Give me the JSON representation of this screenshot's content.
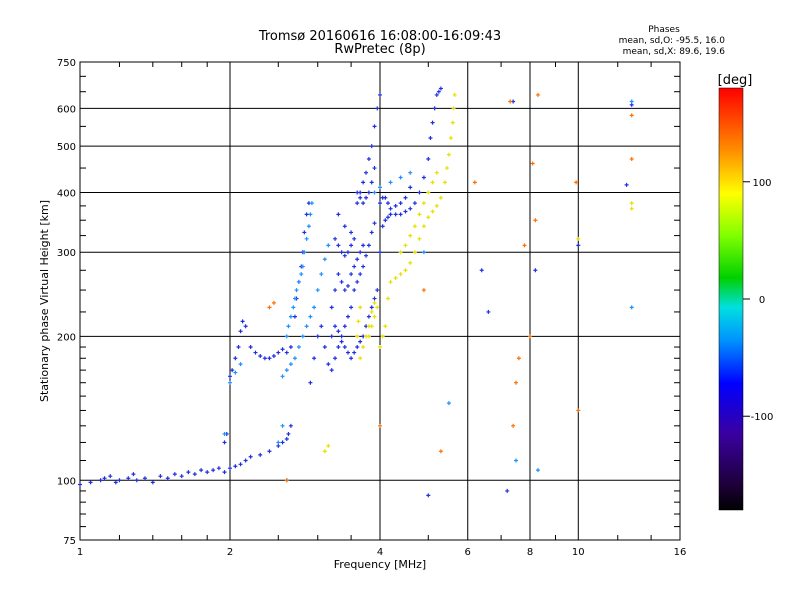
{
  "chart_data": {
    "type": "scatter",
    "title": "Tromsø 20160616 16:08:00-16:09:43",
    "subtitle": "RwPretec (8p)",
    "stats": {
      "heading": "Phases",
      "line_o": "mean, sd,O: -95.5, 16.0",
      "line_x": "mean, sd,X:  89.6, 19.6"
    },
    "xlabel": "Frequency [MHz]",
    "ylabel": "Stationary phase Virtual Height [km]",
    "xscale": "log",
    "yscale": "log",
    "xlim": [
      1,
      16
    ],
    "ylim": [
      75,
      750
    ],
    "xticks": [
      1,
      2,
      4,
      6,
      8,
      10,
      16
    ],
    "xtick_labels": [
      "1",
      "2",
      "4",
      "6",
      "8",
      "10",
      "16"
    ],
    "yticks": [
      75,
      100,
      200,
      300,
      400,
      500,
      600,
      750
    ],
    "ytick_labels": [
      "75",
      "100",
      "200",
      "300",
      "400",
      "500",
      "600",
      "750"
    ],
    "grid": true,
    "colorbar": {
      "label": "[deg]",
      "range": [
        -180,
        180
      ],
      "ticks": [
        100,
        0,
        -100
      ],
      "tick_labels": [
        "100",
        "0",
        "-100"
      ]
    },
    "series": [
      {
        "mode": "O",
        "phase_deg": -120,
        "color": "#2030e0",
        "points": [
          [
            1.0,
            98
          ],
          [
            1.05,
            99
          ],
          [
            1.1,
            100
          ],
          [
            1.12,
            101
          ],
          [
            1.15,
            102
          ],
          [
            1.18,
            99
          ],
          [
            1.2,
            100
          ],
          [
            1.25,
            101
          ],
          [
            1.28,
            103
          ],
          [
            1.3,
            100
          ],
          [
            1.35,
            101
          ],
          [
            1.4,
            99
          ],
          [
            1.45,
            102
          ],
          [
            1.5,
            101
          ],
          [
            1.55,
            103
          ],
          [
            1.6,
            102
          ],
          [
            1.65,
            104
          ],
          [
            1.7,
            103
          ],
          [
            1.75,
            105
          ],
          [
            1.8,
            104
          ],
          [
            1.85,
            105
          ],
          [
            1.9,
            106
          ],
          [
            1.95,
            104
          ],
          [
            2.0,
            106
          ],
          [
            2.05,
            107
          ],
          [
            2.1,
            108
          ],
          [
            2.15,
            110
          ],
          [
            2.2,
            112
          ],
          [
            2.3,
            113
          ],
          [
            2.4,
            115
          ],
          [
            2.5,
            118
          ],
          [
            2.55,
            120
          ],
          [
            2.6,
            122
          ],
          [
            2.62,
            125
          ],
          [
            2.65,
            130
          ],
          [
            1.95,
            120
          ],
          [
            1.97,
            125
          ],
          [
            2.0,
            165
          ],
          [
            2.02,
            170
          ],
          [
            2.05,
            180
          ],
          [
            2.08,
            190
          ],
          [
            2.1,
            205
          ],
          [
            2.12,
            215
          ],
          [
            2.15,
            210
          ],
          [
            2.2,
            190
          ],
          [
            2.25,
            185
          ],
          [
            2.3,
            182
          ],
          [
            2.35,
            180
          ],
          [
            2.4,
            180
          ],
          [
            2.45,
            182
          ],
          [
            2.5,
            185
          ],
          [
            2.55,
            188
          ],
          [
            2.6,
            185
          ],
          [
            2.65,
            190
          ],
          [
            2.9,
            160
          ],
          [
            2.95,
            180
          ],
          [
            3.0,
            200
          ],
          [
            3.05,
            210
          ],
          [
            3.1,
            190
          ],
          [
            3.15,
            175
          ],
          [
            3.2,
            170
          ],
          [
            3.25,
            180
          ],
          [
            3.3,
            190
          ],
          [
            3.35,
            200
          ],
          [
            3.4,
            210
          ],
          [
            3.45,
            220
          ],
          [
            3.5,
            230
          ],
          [
            3.55,
            250
          ],
          [
            3.6,
            260
          ],
          [
            3.65,
            270
          ],
          [
            3.7,
            280
          ],
          [
            3.75,
            295
          ],
          [
            3.8,
            310
          ],
          [
            3.85,
            330
          ],
          [
            3.9,
            345
          ],
          [
            3.2,
            230
          ],
          [
            3.25,
            250
          ],
          [
            3.3,
            270
          ],
          [
            3.35,
            260
          ],
          [
            3.4,
            250
          ],
          [
            3.45,
            255
          ],
          [
            3.5,
            270
          ],
          [
            3.55,
            280
          ],
          [
            3.6,
            290
          ],
          [
            3.65,
            300
          ],
          [
            3.7,
            310
          ],
          [
            3.25,
            320
          ],
          [
            3.3,
            310
          ],
          [
            3.35,
            300
          ],
          [
            3.4,
            295
          ],
          [
            3.45,
            300
          ],
          [
            3.5,
            310
          ],
          [
            3.55,
            320
          ],
          [
            3.2,
            200
          ],
          [
            3.25,
            210
          ],
          [
            3.3,
            205
          ],
          [
            3.35,
            195
          ],
          [
            3.4,
            190
          ],
          [
            3.45,
            185
          ],
          [
            3.5,
            180
          ],
          [
            3.55,
            185
          ],
          [
            3.6,
            190
          ],
          [
            3.65,
            195
          ],
          [
            3.7,
            200
          ],
          [
            3.75,
            210
          ],
          [
            3.8,
            220
          ],
          [
            3.85,
            230
          ],
          [
            3.9,
            240
          ],
          [
            3.95,
            250
          ],
          [
            4.0,
            300
          ],
          [
            4.05,
            340
          ],
          [
            4.1,
            350
          ],
          [
            4.15,
            355
          ],
          [
            4.2,
            360
          ],
          [
            4.3,
            360
          ],
          [
            4.4,
            360
          ],
          [
            4.5,
            365
          ],
          [
            4.6,
            370
          ],
          [
            4.7,
            380
          ],
          [
            4.8,
            400
          ],
          [
            4.9,
            430
          ],
          [
            5.0,
            470
          ],
          [
            5.05,
            520
          ],
          [
            5.1,
            560
          ],
          [
            5.15,
            600
          ],
          [
            5.2,
            640
          ],
          [
            5.25,
            650
          ],
          [
            5.3,
            660
          ],
          [
            4.0,
            380
          ],
          [
            4.05,
            390
          ],
          [
            4.1,
            390
          ],
          [
            4.15,
            380
          ],
          [
            4.2,
            370
          ],
          [
            4.3,
            375
          ],
          [
            4.4,
            380
          ],
          [
            4.5,
            390
          ],
          [
            4.6,
            410
          ],
          [
            3.6,
            380
          ],
          [
            3.65,
            400
          ],
          [
            3.7,
            420
          ],
          [
            3.75,
            440
          ],
          [
            3.8,
            470
          ],
          [
            3.85,
            500
          ],
          [
            3.9,
            550
          ],
          [
            3.95,
            600
          ],
          [
            4.0,
            640
          ],
          [
            3.6,
            400
          ],
          [
            3.65,
            390
          ],
          [
            3.7,
            380
          ],
          [
            3.75,
            390
          ],
          [
            3.8,
            400
          ],
          [
            3.85,
            420
          ],
          [
            3.9,
            450
          ],
          [
            2.7,
            220
          ],
          [
            2.72,
            240
          ],
          [
            2.75,
            260
          ],
          [
            2.78,
            280
          ],
          [
            2.8,
            300
          ],
          [
            2.82,
            330
          ],
          [
            2.85,
            360
          ],
          [
            2.88,
            380
          ],
          [
            3.3,
            360
          ],
          [
            3.4,
            340
          ],
          [
            3.5,
            330
          ],
          [
            6.4,
            275
          ],
          [
            6.6,
            225
          ],
          [
            7.2,
            95
          ],
          [
            7.4,
            620
          ],
          [
            8.2,
            275
          ],
          [
            5.0,
            93
          ],
          [
            10.0,
            310
          ],
          [
            12.5,
            415
          ],
          [
            12.8,
            610
          ]
        ]
      },
      {
        "mode": "O-scatter",
        "phase_deg": -85,
        "color": "#1e90ff",
        "points": [
          [
            2.6,
            200
          ],
          [
            2.62,
            210
          ],
          [
            2.65,
            220
          ],
          [
            2.68,
            230
          ],
          [
            2.7,
            240
          ],
          [
            2.72,
            250
          ],
          [
            2.75,
            260
          ],
          [
            2.78,
            270
          ],
          [
            2.8,
            280
          ],
          [
            2.82,
            300
          ],
          [
            2.85,
            320
          ],
          [
            2.88,
            340
          ],
          [
            2.9,
            360
          ],
          [
            2.92,
            380
          ],
          [
            2.75,
            190
          ],
          [
            2.8,
            200
          ],
          [
            2.85,
            210
          ],
          [
            2.9,
            220
          ],
          [
            2.95,
            230
          ],
          [
            3.0,
            250
          ],
          [
            3.05,
            270
          ],
          [
            3.1,
            290
          ],
          [
            3.15,
            310
          ],
          [
            2.55,
            165
          ],
          [
            2.6,
            170
          ],
          [
            2.65,
            175
          ],
          [
            2.7,
            180
          ],
          [
            1.95,
            125
          ],
          [
            2.0,
            160
          ],
          [
            2.05,
            168
          ],
          [
            2.1,
            175
          ],
          [
            3.9,
            400
          ],
          [
            4.0,
            410
          ],
          [
            4.2,
            420
          ],
          [
            4.4,
            430
          ],
          [
            4.6,
            440
          ],
          [
            4.9,
            300
          ],
          [
            2.6,
            100
          ],
          [
            8.3,
            105
          ],
          [
            12.8,
            230
          ],
          [
            12.8,
            620
          ],
          [
            7.5,
            110
          ],
          [
            5.5,
            145
          ],
          [
            2.5,
            120
          ],
          [
            2.55,
            130
          ]
        ]
      },
      {
        "mode": "X",
        "phase_deg": 90,
        "color": "#e8e000",
        "points": [
          [
            3.8,
            200
          ],
          [
            3.85,
            210
          ],
          [
            3.9,
            220
          ],
          [
            3.95,
            230
          ],
          [
            4.0,
            190
          ],
          [
            4.05,
            200
          ],
          [
            4.1,
            210
          ],
          [
            4.15,
            240
          ],
          [
            4.2,
            260
          ],
          [
            4.3,
            265
          ],
          [
            4.4,
            270
          ],
          [
            4.5,
            275
          ],
          [
            4.6,
            285
          ],
          [
            4.7,
            300
          ],
          [
            4.8,
            320
          ],
          [
            4.9,
            340
          ],
          [
            5.0,
            355
          ],
          [
            5.1,
            365
          ],
          [
            5.2,
            375
          ],
          [
            5.3,
            390
          ],
          [
            5.4,
            420
          ],
          [
            5.45,
            450
          ],
          [
            5.5,
            480
          ],
          [
            5.55,
            520
          ],
          [
            5.6,
            560
          ],
          [
            5.62,
            600
          ],
          [
            5.65,
            640
          ],
          [
            4.4,
            300
          ],
          [
            4.5,
            310
          ],
          [
            4.6,
            325
          ],
          [
            4.7,
            340
          ],
          [
            4.8,
            360
          ],
          [
            4.9,
            380
          ],
          [
            5.0,
            400
          ],
          [
            5.1,
            420
          ],
          [
            5.2,
            440
          ],
          [
            3.65,
            180
          ],
          [
            3.7,
            190
          ],
          [
            3.75,
            200
          ],
          [
            3.8,
            210
          ],
          [
            3.85,
            225
          ],
          [
            3.9,
            235
          ],
          [
            3.6,
            200
          ],
          [
            3.62,
            215
          ],
          [
            3.65,
            230
          ],
          [
            3.1,
            115
          ],
          [
            3.15,
            118
          ],
          [
            10.0,
            320
          ],
          [
            12.8,
            370
          ],
          [
            12.8,
            380
          ]
        ]
      },
      {
        "mode": "misc",
        "phase_deg": 150,
        "color": "#ff7000",
        "points": [
          [
            2.4,
            230
          ],
          [
            2.45,
            235
          ],
          [
            2.6,
            100
          ],
          [
            4.9,
            250
          ],
          [
            6.2,
            420
          ],
          [
            7.3,
            620
          ],
          [
            7.5,
            160
          ],
          [
            7.6,
            180
          ],
          [
            7.8,
            310
          ],
          [
            8.1,
            460
          ],
          [
            8.2,
            350
          ],
          [
            8.3,
            640
          ],
          [
            9.9,
            420
          ],
          [
            10.0,
            140
          ],
          [
            12.8,
            580
          ],
          [
            12.8,
            470
          ],
          [
            4.0,
            130
          ],
          [
            5.3,
            115
          ],
          [
            7.4,
            130
          ],
          [
            8.0,
            200
          ]
        ]
      }
    ]
  }
}
